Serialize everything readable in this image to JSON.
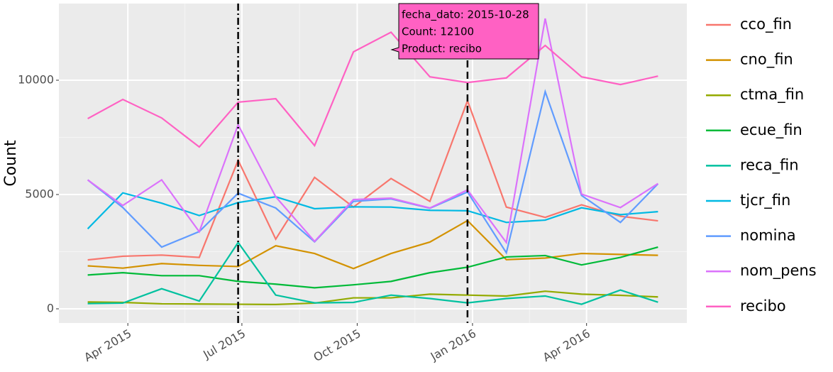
{
  "chart_data": {
    "type": "line",
    "y_label": "Count",
    "x": [
      "2015-02-28",
      "2015-03-28",
      "2015-04-28",
      "2015-05-28",
      "2015-06-28",
      "2015-07-28",
      "2015-08-28",
      "2015-09-28",
      "2015-10-28",
      "2015-11-28",
      "2015-12-28",
      "2016-01-28",
      "2016-02-28",
      "2016-03-28",
      "2016-04-28",
      "2016-05-28"
    ],
    "xlim": [
      "2015-02-05",
      "2016-06-20"
    ],
    "xticks": [
      {
        "value": "2015-04-01",
        "label": "Apr 2015"
      },
      {
        "value": "2015-07-01",
        "label": "Jul 2015"
      },
      {
        "value": "2015-10-01",
        "label": "Oct 2015"
      },
      {
        "value": "2016-01-01",
        "label": "Jan 2016"
      },
      {
        "value": "2016-04-01",
        "label": "Apr 2016"
      }
    ],
    "ylim": [
      -621,
      13354
    ],
    "yticks": [
      0,
      5000,
      10000
    ],
    "grid": true,
    "legend": "right",
    "series": [
      {
        "name": "cco_fin",
        "color": "#F8766D",
        "values": [
          2140,
          2300,
          2350,
          2250,
          6500,
          3050,
          5750,
          4450,
          5700,
          4700,
          9100,
          4450,
          4000,
          4550,
          4050,
          3850
        ]
      },
      {
        "name": "cno_fin",
        "color": "#D39200",
        "values": [
          1880,
          1780,
          1980,
          1900,
          1850,
          2760,
          2420,
          1760,
          2420,
          2920,
          3860,
          2150,
          2220,
          2420,
          2380,
          2340
        ]
      },
      {
        "name": "ctma_fin",
        "color": "#93AA00",
        "values": [
          300,
          280,
          220,
          210,
          200,
          190,
          250,
          480,
          480,
          640,
          600,
          560,
          770,
          640,
          590,
          520
        ]
      },
      {
        "name": "ecue_fin",
        "color": "#00BA38",
        "values": [
          1480,
          1580,
          1450,
          1450,
          1200,
          1080,
          920,
          1050,
          1200,
          1580,
          1820,
          2270,
          2330,
          1920,
          2250,
          2700
        ]
      },
      {
        "name": "reca_fin",
        "color": "#00C19F",
        "values": [
          230,
          250,
          880,
          340,
          2900,
          600,
          260,
          280,
          600,
          450,
          260,
          450,
          560,
          200,
          820,
          290
        ]
      },
      {
        "name": "tjcr_fin",
        "color": "#00B9E3",
        "values": [
          3500,
          5070,
          4620,
          4080,
          4650,
          4900,
          4380,
          4460,
          4450,
          4310,
          4290,
          3780,
          3880,
          4420,
          4120,
          4250
        ]
      },
      {
        "name": "nomina",
        "color": "#619CFF",
        "values": [
          5640,
          4430,
          2700,
          3380,
          5060,
          4410,
          2930,
          4700,
          4810,
          4400,
          5110,
          2450,
          9500,
          4960,
          3780,
          5470
        ]
      },
      {
        "name": "nom_pens",
        "color": "#DB72FB",
        "values": [
          5640,
          4520,
          5640,
          3370,
          8050,
          4900,
          2950,
          4780,
          4840,
          4410,
          5200,
          2900,
          12700,
          5020,
          4430,
          5480
        ]
      },
      {
        "name": "recibo",
        "color": "#FF61C3",
        "values": [
          8320,
          9160,
          8350,
          7080,
          9040,
          9190,
          7140,
          11240,
          12100,
          10150,
          9900,
          10100,
          11520,
          10150,
          9810,
          10180
        ]
      }
    ],
    "vlines": [
      {
        "x": "2015-06-28",
        "style": "dotdash"
      },
      {
        "x": "2015-12-28",
        "style": "dashed"
      }
    ],
    "tooltip": {
      "lines": [
        "fecha_dato: 2015-10-28",
        "Count: 12100",
        "Product: recibo"
      ],
      "color": "#FF61C3"
    }
  }
}
